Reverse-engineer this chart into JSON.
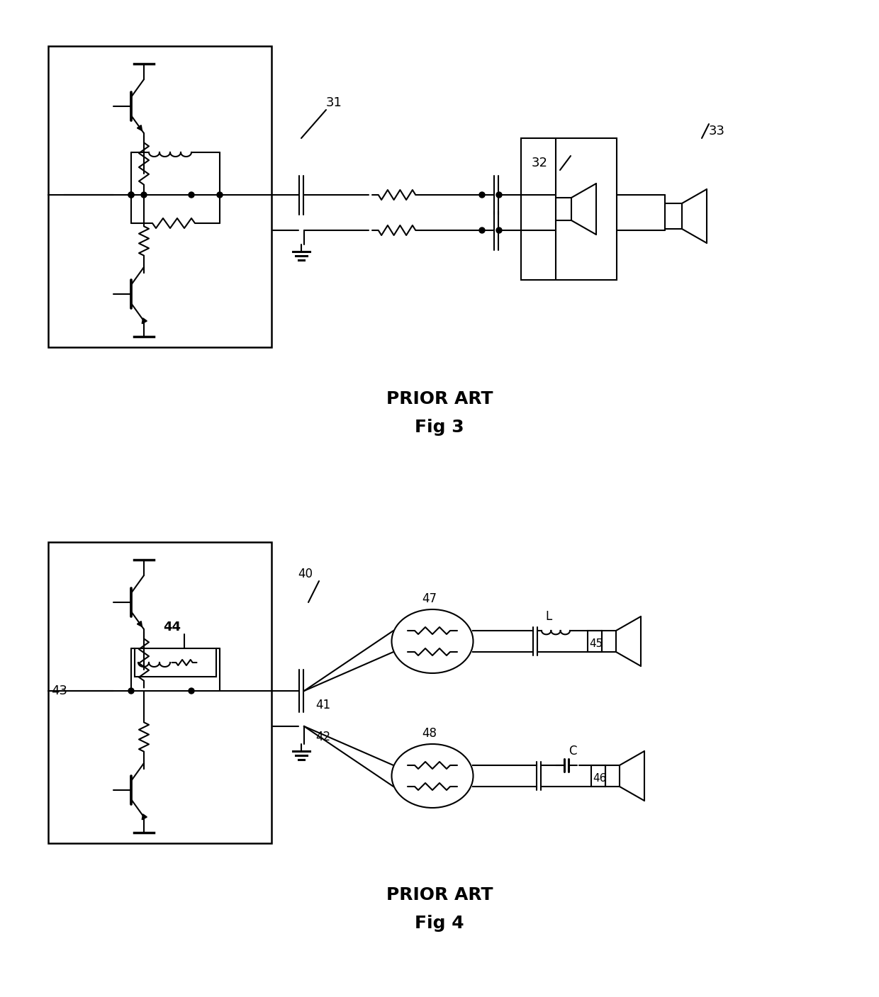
{
  "bg": "#ffffff",
  "lw": 1.5,
  "fig3_title": "PRIOR ART",
  "fig3_sub": "Fig 3",
  "fig4_title": "PRIOR ART",
  "fig4_sub": "Fig 4",
  "l31": "31",
  "l32": "32",
  "l33": "33",
  "l40": "40",
  "l41": "41",
  "l42": "42",
  "l43": "43",
  "l44": "44",
  "l45": "45",
  "l46": "46",
  "l47": "47",
  "l48": "48",
  "lL": "L",
  "lC": "C"
}
